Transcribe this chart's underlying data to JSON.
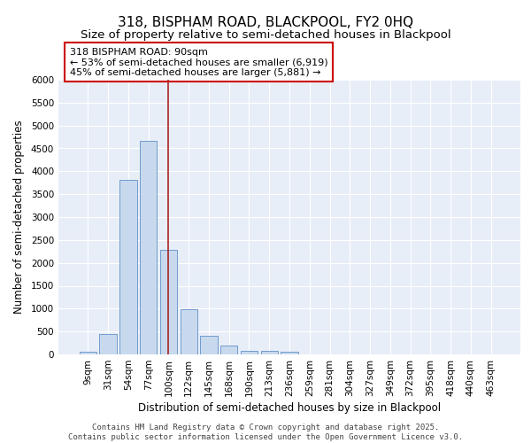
{
  "title_line1": "318, BISPHAM ROAD, BLACKPOOL, FY2 0HQ",
  "title_line2": "Size of property relative to semi-detached houses in Blackpool",
  "xlabel": "Distribution of semi-detached houses by size in Blackpool",
  "ylabel": "Number of semi-detached properties",
  "categories": [
    "9sqm",
    "31sqm",
    "54sqm",
    "77sqm",
    "100sqm",
    "122sqm",
    "145sqm",
    "168sqm",
    "190sqm",
    "213sqm",
    "236sqm",
    "259sqm",
    "281sqm",
    "304sqm",
    "327sqm",
    "349sqm",
    "372sqm",
    "395sqm",
    "418sqm",
    "440sqm",
    "463sqm"
  ],
  "values": [
    50,
    440,
    3820,
    4670,
    2290,
    990,
    410,
    200,
    85,
    75,
    55,
    0,
    0,
    0,
    0,
    0,
    0,
    0,
    0,
    0,
    0
  ],
  "bar_color": "#c8d9ee",
  "bar_edge_color": "#6090c8",
  "vline_x": 4,
  "vline_color": "#aa2222",
  "annotation_box_text": "318 BISPHAM ROAD: 90sqm\n← 53% of semi-detached houses are smaller (6,919)\n45% of semi-detached houses are larger (5,881) →",
  "ylim": [
    0,
    6000
  ],
  "yticks": [
    0,
    500,
    1000,
    1500,
    2000,
    2500,
    3000,
    3500,
    4000,
    4500,
    5000,
    5500,
    6000
  ],
  "background_color": "#e8eef8",
  "grid_color": "#ffffff",
  "footer": "Contains HM Land Registry data © Crown copyright and database right 2025.\nContains public sector information licensed under the Open Government Licence v3.0.",
  "title_fontsize": 11,
  "subtitle_fontsize": 9.5,
  "axis_label_fontsize": 8.5,
  "tick_fontsize": 7.5,
  "annotation_fontsize": 8,
  "footer_fontsize": 6.5
}
